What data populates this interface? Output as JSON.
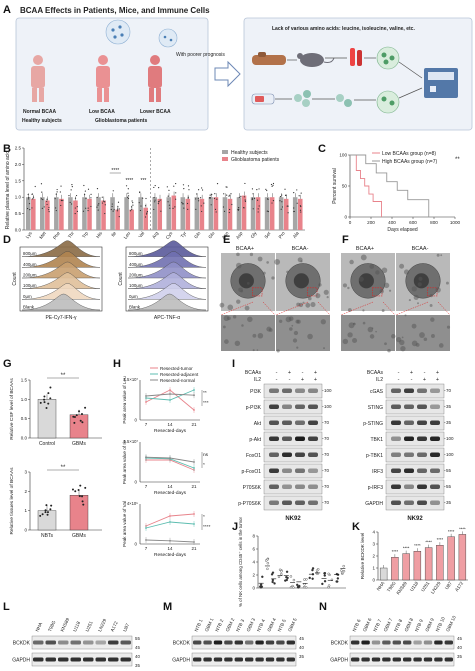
{
  "panelA": {
    "letter": "A",
    "title": "BCAA Effects in Patients, Mice, and Immune Cells",
    "normal_label": "Normal BCAA",
    "low_label": "Low BCAA",
    "lower_label": "Lower BCAA",
    "prognosis_label": "With poorer prognosis",
    "healthy_label": "Healthy subjects",
    "gbm_label": "Glioblastoma patients",
    "lack_label": "Lack of various amino acids: leucine, isoleucine, valine, etc."
  },
  "panelB": {
    "letter": "B",
    "ylabel": "Relative plasma level of amino acid",
    "legend": [
      "Healthy subjects",
      "Glioblastoma patients"
    ],
    "colors": {
      "healthy": "#a6a6a6",
      "gbm": "#e8838b"
    },
    "sig": [
      "****",
      "****",
      "***"
    ],
    "chart_data": {
      "type": "bar",
      "categories": [
        "Lys",
        "Met",
        "Phe",
        "Thr",
        "Trp",
        "His",
        "Ile",
        "Leu",
        "Val",
        "Arg",
        "Cys",
        "Tyr",
        "Gln",
        "Glu",
        "Asn",
        "Asp",
        "Gly",
        "Ser",
        "Pro",
        "Ala"
      ],
      "yticks": [
        "0.0",
        "0.5",
        "1.0",
        "1.5",
        "2.0",
        "2.5"
      ],
      "ylim": [
        0,
        2.5
      ],
      "series": [
        {
          "name": "Healthy subjects",
          "values": [
            1.0,
            1.0,
            1.0,
            1.0,
            1.0,
            1.0,
            1.0,
            1.0,
            1.0,
            1.0,
            1.0,
            1.0,
            1.0,
            1.0,
            1.0,
            1.0,
            1.0,
            1.0,
            1.0,
            1.0
          ]
        },
        {
          "name": "Glioblastoma patients",
          "values": [
            0.95,
            0.9,
            0.95,
            0.9,
            0.95,
            0.9,
            0.62,
            0.62,
            0.68,
            0.95,
            1.05,
            0.95,
            0.95,
            1.0,
            0.95,
            1.05,
            1.0,
            1.0,
            0.95,
            0.95
          ]
        }
      ]
    }
  },
  "panelC": {
    "letter": "C",
    "ylabel": "Percent survival",
    "xlabel": "Days elapsed",
    "legend": [
      "Low BCAAs group (n=8)",
      "High BCAAs group (n=7)"
    ],
    "sig": "**",
    "chart_data": {
      "type": "line",
      "xticks": [
        "0",
        "200",
        "400",
        "600",
        "800",
        "1000"
      ],
      "yticks": [
        "0",
        "50",
        "100"
      ],
      "xlim": [
        0,
        1000
      ],
      "ylim": [
        0,
        100
      ],
      "series": [
        {
          "name": "Low BCAAs group (n=8)",
          "color": "#e8838b",
          "x": [
            0,
            60,
            100,
            140,
            180,
            220,
            300
          ],
          "y": [
            100,
            75,
            62,
            50,
            37,
            25,
            0
          ]
        },
        {
          "name": "High BCAAs group (n=7)",
          "color": "#999999",
          "x": [
            0,
            150,
            250,
            350,
            450,
            550,
            750
          ],
          "y": [
            100,
            86,
            71,
            57,
            43,
            28,
            0
          ]
        }
      ]
    }
  },
  "panelD": {
    "letter": "D",
    "concentrations": [
      "800μm",
      "400μm",
      "200μm",
      "100μm",
      "0μm",
      "Blank"
    ],
    "left_xlabel": "PE-Cy7-IFN-γ",
    "right_xlabel": "APC-TNF-α",
    "ylabel": "Count",
    "left_colors": [
      "#8a6a45",
      "#b08450",
      "#c9a070",
      "#e0c09a",
      "#f0d8c0",
      "#bdbdbd"
    ],
    "right_colors": [
      "#5a5a9a",
      "#7070b0",
      "#9090c8",
      "#b0b0dc",
      "#d0d0ec",
      "#bdbdbd"
    ]
  },
  "panelE": {
    "letter": "E",
    "left": "BCAA+",
    "right": "BCAA-"
  },
  "panelF": {
    "letter": "F",
    "left": "BCAA+",
    "right": "BCAA-"
  },
  "panelG": {
    "letter": "G",
    "top": {
      "ylabel": "Relative CSF level of BCAAs",
      "categories": [
        "Control",
        "GBMs"
      ],
      "sig": "**",
      "chart_data": {
        "type": "bar",
        "categories": [
          "Control",
          "GBMs"
        ],
        "values": [
          1.0,
          0.6
        ],
        "ylim": [
          0,
          1.5
        ],
        "yticks": [
          "0.0",
          "0.5",
          "1.0",
          "1.5"
        ]
      }
    },
    "bottom": {
      "ylabel": "Relative tissues level of BCAAs",
      "categories": [
        "NBTs",
        "GBMs"
      ],
      "sig": "**",
      "chart_data": {
        "type": "bar",
        "categories": [
          "NBTs",
          "GBMs"
        ],
        "values": [
          1.0,
          1.8
        ],
        "ylim": [
          0,
          3
        ],
        "yticks": [
          "0",
          "1",
          "2",
          "3"
        ]
      }
    }
  },
  "panelH": {
    "letter": "H",
    "legend": [
      "Resected-tumor",
      "Resected-adjacent",
      "Resected-normal"
    ],
    "colors": [
      "#e8838b",
      "#5dbdb0",
      "#888888"
    ],
    "xlabel": "Resected-days",
    "charts": [
      {
        "ylabel": "Peak area value of Leu",
        "ymax_label": "1.5×10⁷",
        "sig": [
          "**",
          "***"
        ],
        "chart_data": {
          "type": "line",
          "x": [
            7,
            14,
            21
          ],
          "series": [
            {
              "name": "Resected-tumor",
              "values": [
                0.45,
                0.75,
                0.25
              ]
            },
            {
              "name": "Resected-adjacent",
              "values": [
                0.55,
                0.5,
                0.75
              ]
            },
            {
              "name": "Resected-normal",
              "values": [
                0.6,
                0.65,
                0.62
              ]
            }
          ]
        }
      },
      {
        "ylabel": "Peak area value of Ile",
        "ymax_label": "1.5×10⁷",
        "sig": [
          "ns",
          "*"
        ],
        "chart_data": {
          "type": "line",
          "x": [
            7,
            14,
            21
          ],
          "series": [
            {
              "name": "Resected-tumor",
              "values": [
                0.55,
                0.55,
                0.3
              ]
            },
            {
              "name": "Resected-adjacent",
              "values": [
                0.6,
                0.58,
                0.35
              ]
            },
            {
              "name": "Resected-normal",
              "values": [
                0.62,
                0.6,
                0.5
              ]
            }
          ]
        }
      },
      {
        "ylabel": "Peak area value of Val",
        "ymax_label": "4×10⁵",
        "sig": [
          "*",
          "****"
        ],
        "chart_data": {
          "type": "line",
          "x": [
            7,
            14,
            21
          ],
          "series": [
            {
              "name": "Resected-tumor",
              "values": [
                0.45,
                0.7,
                0.75
              ]
            },
            {
              "name": "Resected-adjacent",
              "values": [
                0.4,
                0.55,
                0.5
              ]
            },
            {
              "name": "Resected-normal",
              "values": [
                0.1,
                0.08,
                0.05
              ]
            }
          ]
        }
      }
    ],
    "xticks": [
      "7",
      "14",
      "21"
    ]
  },
  "panelI": {
    "letter": "I",
    "row_bcaa": "BCAAs",
    "row_il2": "IL2",
    "bcaa_signs": [
      "-",
      "+",
      "-",
      "+"
    ],
    "il2_signs": [
      "-",
      "-",
      "+",
      "+"
    ],
    "left_bands": [
      "PI3K",
      "p-PI3K",
      "Akt",
      "p-Akt",
      "FoxO1",
      "p-FoxO1",
      "P70S6K",
      "p-P70S6K"
    ],
    "left_kd": [
      "100",
      "100",
      "70",
      "70",
      "70",
      "70",
      "70",
      "70"
    ],
    "right_bands": [
      "cGAS",
      "STING",
      "p-STING",
      "TBK1",
      "p-TBK1",
      "IRF3",
      "p-IRF3",
      "GAPDH"
    ],
    "right_kd": [
      "70",
      "35",
      "35",
      "100",
      "100",
      "55",
      "55",
      "35"
    ],
    "cell_label": "NK92"
  },
  "panelJ": {
    "letter": "J",
    "ylabel": "% of NK cells among CD45⁺ cells in the tumor",
    "chart_data": {
      "type": "scatter",
      "groups": 14,
      "ylim": [
        0,
        8
      ],
      "yticks": [
        "0",
        "2",
        "4",
        "6",
        "8"
      ]
    }
  },
  "panelK": {
    "letter": "K",
    "ylabel": "Relative BCKDK level",
    "sig": "****",
    "chart_data": {
      "type": "bar",
      "categories": [
        "NHA",
        "T98G",
        "KNS89",
        "U118",
        "U251",
        "LN229",
        "U87",
        "A172"
      ],
      "values": [
        1.0,
        1.9,
        2.2,
        2.4,
        2.7,
        2.9,
        3.6,
        3.8
      ],
      "ylim": [
        0,
        4
      ],
      "yticks": [
        "0",
        "1",
        "2",
        "3",
        "4"
      ]
    }
  },
  "panelL": {
    "letter": "L",
    "lanes": [
      "NHA",
      "T98G",
      "KNS89",
      "U118",
      "U251",
      "LN229",
      "A172",
      "U87"
    ],
    "bands": [
      "BCKDK",
      "GAPDH"
    ],
    "kd": [
      "55",
      "45",
      "40",
      "35"
    ]
  },
  "panelM": {
    "letter": "M",
    "lanes": [
      "NTB 1",
      "GBM 1",
      "NTB 2",
      "GBM 2",
      "NTB 3",
      "GBM 3",
      "NTB 4",
      "GBM 4",
      "NTB 5",
      "GBM 5"
    ],
    "bands": [
      "BCKDK",
      "GAPDH"
    ],
    "kd": [
      "45",
      "40",
      "35"
    ]
  },
  "panelN": {
    "letter": "N",
    "lanes": [
      "NTB 6",
      "GBM 6",
      "NTB 7",
      "GBM 7",
      "NTB 8",
      "GBM 8",
      "NTB 9",
      "GBM 9",
      "NTB 10",
      "GBM 10"
    ],
    "bands": [
      "BCKDK",
      "GAPDH"
    ],
    "kd": [
      "45",
      "40",
      "35"
    ]
  }
}
